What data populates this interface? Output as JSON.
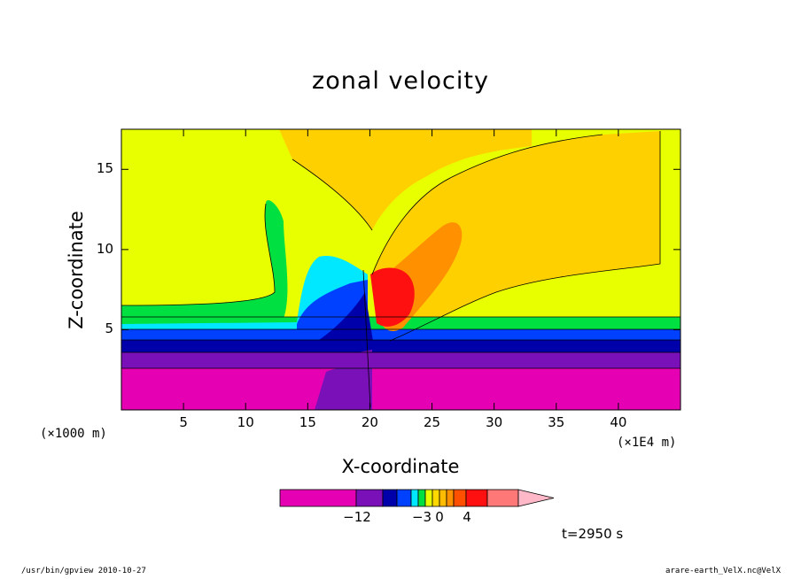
{
  "chart_data": {
    "type": "heatmap",
    "title": "zonal velocity",
    "xlabel": "X-coordinate",
    "ylabel": "Z-coordinate",
    "x_scale_note": "(×1000 m)",
    "y_scale_note": "(×1E4 m)",
    "xlim": [
      0,
      45
    ],
    "ylim": [
      0,
      17.5
    ],
    "x_ticks": [
      5,
      10,
      15,
      20,
      25,
      30,
      35,
      40
    ],
    "y_ticks": [
      5,
      10,
      15
    ],
    "colorbar": {
      "labels": [
        {
          "text": "−12",
          "value": -12
        },
        {
          "text": "−3",
          "value": -3
        },
        {
          "text": "0",
          "value": 0
        },
        {
          "text": "4",
          "value": 4
        }
      ],
      "colors": [
        "#e600b4",
        "#7a10b8",
        "#0000aa",
        "#0040ff",
        "#00e8ff",
        "#00e040",
        "#e8ff00",
        "#ffd800",
        "#ffbc00",
        "#ff9000",
        "#ff5000",
        "#ff1010",
        "#ff7878",
        "#ffb8c8"
      ]
    },
    "time_label": "t=2950 s"
  },
  "footer": {
    "left": "/usr/bin/gpview  2010-10-27",
    "right": "arare-earth_VelX.nc@VelX"
  }
}
